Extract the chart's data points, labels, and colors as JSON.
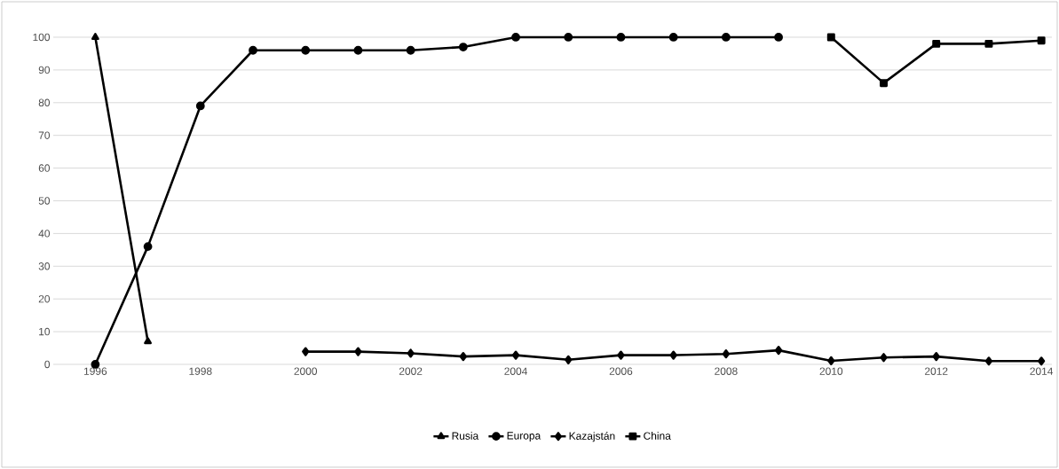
{
  "chart_data": {
    "type": "line",
    "xlim": [
      1995.2,
      2014.2
    ],
    "xticks": [
      1996,
      1998,
      2000,
      2002,
      2004,
      2006,
      2008,
      2010,
      2012,
      2014
    ],
    "ylim": [
      0,
      100
    ],
    "yticks": [
      0,
      10,
      20,
      30,
      40,
      50,
      60,
      70,
      80,
      90,
      100
    ],
    "grid": "y",
    "legend": "bottom",
    "series": [
      {
        "name": "Rusia",
        "color": "#000000",
        "marker": "triangle",
        "x": [
          1996,
          1997
        ],
        "values": [
          100,
          7
        ]
      },
      {
        "name": "Europa",
        "color": "#000000",
        "marker": "circle",
        "x": [
          1996,
          1997,
          1998,
          1999,
          2000,
          2001,
          2002,
          2003,
          2004,
          2005,
          2006,
          2007,
          2008,
          2009
        ],
        "values": [
          0,
          36,
          79,
          96,
          96,
          96,
          96,
          97,
          100,
          100,
          100,
          100,
          100,
          100
        ]
      },
      {
        "name": "Kazajstán",
        "color": "#000000",
        "marker": "diamond",
        "x": [
          2000,
          2001,
          2002,
          2003,
          2004,
          2005,
          2006,
          2007,
          2008,
          2009,
          2010,
          2011,
          2012,
          2013,
          2014
        ],
        "values": [
          3.9,
          3.9,
          3.4,
          2.4,
          2.8,
          1.4,
          2.8,
          2.8,
          3.2,
          4.3,
          1.1,
          2.1,
          2.4,
          1.0,
          1.0
        ]
      },
      {
        "name": "China",
        "color": "#000000",
        "marker": "square",
        "x": [
          2010,
          2011,
          2012,
          2013,
          2014
        ],
        "values": [
          100,
          86,
          98,
          98,
          99
        ]
      }
    ]
  }
}
